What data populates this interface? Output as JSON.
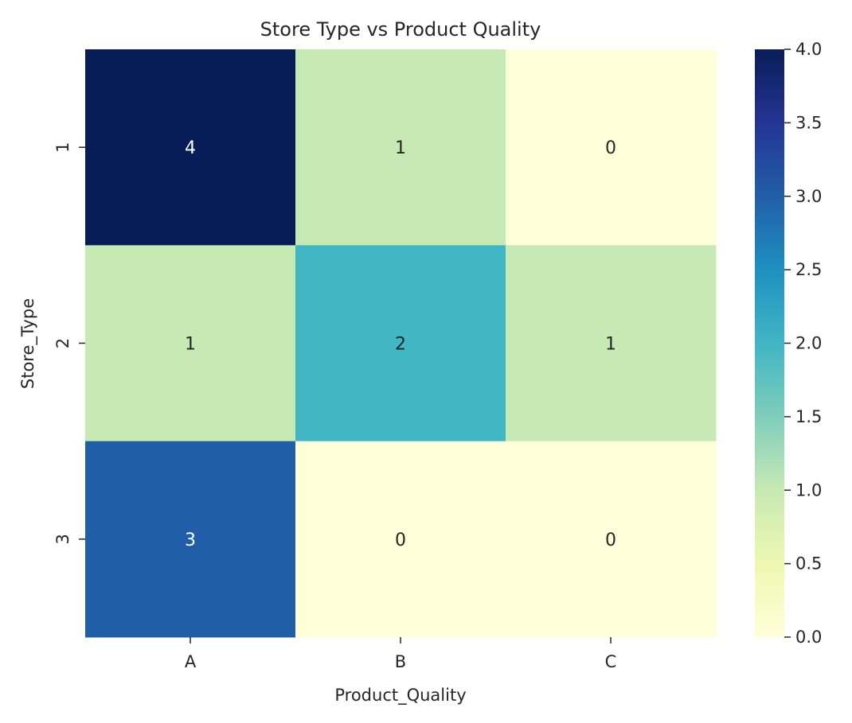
{
  "chart_data": {
    "type": "heatmap",
    "title": "Store Type vs Product Quality",
    "xlabel": "Product_Quality",
    "ylabel": "Store_Type",
    "x_categories": [
      "A",
      "B",
      "C"
    ],
    "y_categories": [
      "1",
      "2",
      "3"
    ],
    "values": [
      [
        4,
        1,
        0
      ],
      [
        1,
        2,
        1
      ],
      [
        3,
        0,
        0
      ]
    ],
    "colormap": "YlGnBu",
    "value_range": [
      0,
      4
    ],
    "colorbar_ticks": [
      "0.0",
      "0.5",
      "1.0",
      "1.5",
      "2.0",
      "2.5",
      "3.0",
      "3.5",
      "4.0"
    ],
    "colorbar_tick_values": [
      0,
      0.5,
      1,
      1.5,
      2,
      2.5,
      3,
      3.5,
      4
    ],
    "annotations": true,
    "colors": {
      "0": "#ffffd9",
      "0.5": "#edf8b1",
      "1": "#c7e9b4",
      "1.5": "#7fcdbb",
      "2": "#41b6c4",
      "2.5": "#1d91c0",
      "3": "#225ea8",
      "3.5": "#253494",
      "4": "#081d58"
    }
  }
}
